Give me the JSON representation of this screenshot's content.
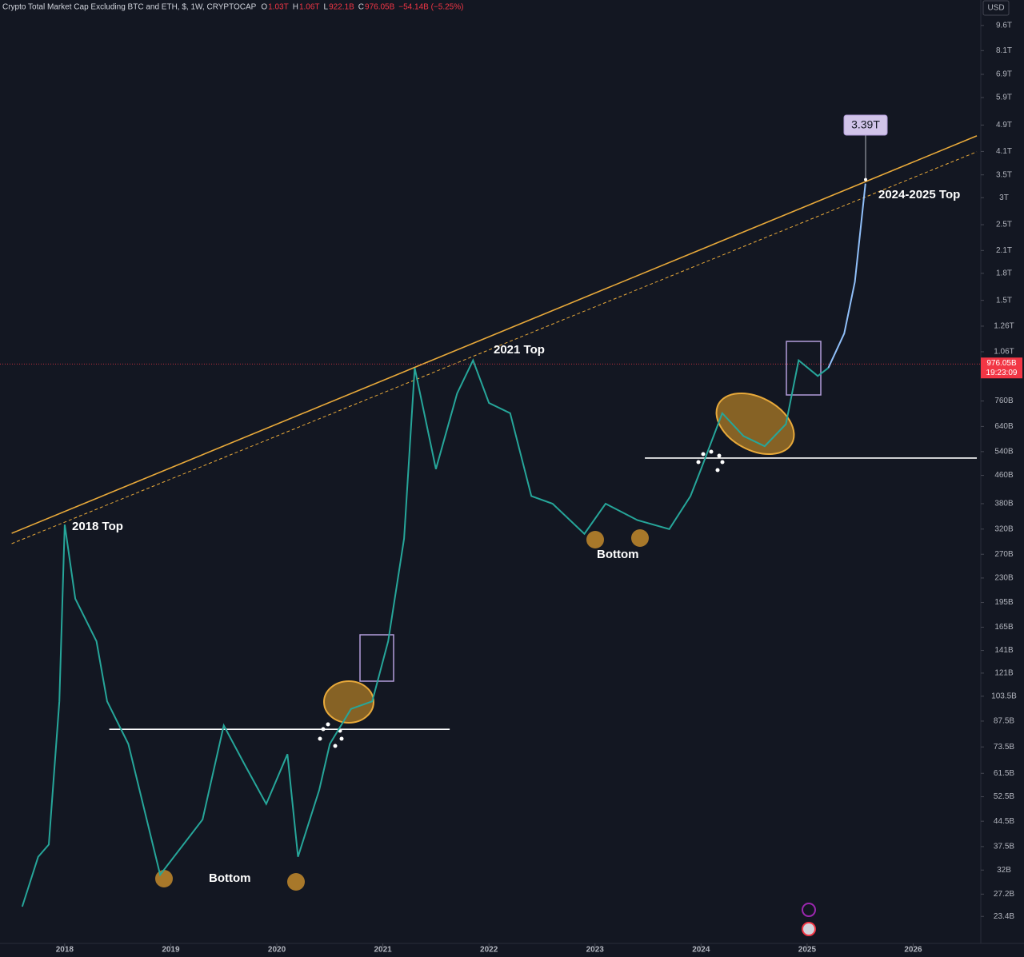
{
  "header": {
    "title": "Crypto Total Market Cap Excluding BTC and ETH, $, 1W, CRYPTOCAP",
    "ohlc": [
      {
        "key": "O",
        "value": "1.03T"
      },
      {
        "key": "H",
        "value": "1.06T"
      },
      {
        "key": "L",
        "value": "922.1B"
      },
      {
        "key": "C",
        "value": "976.05B"
      }
    ],
    "change": "−54.14B (−5.25%)",
    "currency": "USD"
  },
  "chart_data": {
    "type": "line",
    "log_scale": true,
    "grid": false,
    "x": [
      2017.6,
      2017.75,
      2017.85,
      2017.95,
      2018.0,
      2018.1,
      2018.3,
      2018.4,
      2018.6,
      2018.9,
      2019.3,
      2019.5,
      2019.7,
      2019.9,
      2020.1,
      2020.2,
      2020.4,
      2020.5,
      2020.7,
      2020.9,
      2021.05,
      2021.2,
      2021.3,
      2021.5,
      2021.7,
      2021.85,
      2022.0,
      2022.2,
      2022.4,
      2022.6,
      2022.9,
      2023.1,
      2023.4,
      2023.7,
      2023.9,
      2024.0,
      2024.2,
      2024.4,
      2024.6,
      2024.8,
      2024.92,
      2025.1,
      2025.2,
      2025.35,
      2025.45,
      2025.55
    ],
    "series": [
      {
        "color": "#26a69a",
        "values": [
          25000000000.0,
          35000000000.0,
          38000000000.0,
          100000000000.0,
          330000000000.0,
          200000000000.0,
          150000000000.0,
          100000000000.0,
          75000000000.0,
          31000000000.0,
          45000000000.0,
          85000000000.0,
          65000000000.0,
          50000000000.0,
          70000000000.0,
          35000000000.0,
          55000000000.0,
          75000000000.0,
          95000000000.0,
          100000000000.0,
          150000000000.0,
          300000000000.0,
          950000000000.0,
          480000000000.0,
          800000000000.0,
          1000000000000.0,
          750000000000.0,
          700000000000.0,
          400000000000.0,
          380000000000.0,
          310000000000.0,
          380000000000.0,
          340000000000.0,
          320000000000.0,
          400000000000.0,
          480000000000.0,
          700000000000.0,
          600000000000.0,
          560000000000.0,
          650000000000.0,
          1000000000000.0,
          900000000000.0,
          950000000000.0,
          null,
          null,
          null
        ]
      },
      {
        "color": "#90bff9",
        "values": [
          null,
          null,
          null,
          null,
          null,
          null,
          null,
          null,
          null,
          null,
          null,
          null,
          null,
          null,
          null,
          null,
          null,
          null,
          null,
          null,
          null,
          null,
          null,
          null,
          null,
          null,
          null,
          null,
          null,
          null,
          null,
          null,
          null,
          null,
          null,
          null,
          null,
          null,
          null,
          null,
          null,
          null,
          950000000000.0,
          1200000000000.0,
          1700000000000.0,
          3300000000000.0
        ]
      }
    ],
    "trendlines": [
      {
        "color": "#e8a93a",
        "dashed": false,
        "x": [
          2017.5,
          2026.6
        ],
        "values": [
          311000000000.0,
          4555000000000.0
        ]
      },
      {
        "color": "#e8a93a",
        "dashed": true,
        "x": [
          2017.5,
          2026.6
        ],
        "values": [
          290000000000.0,
          4090000000000.0
        ]
      },
      {
        "color": "#ffffff",
        "dashed": false,
        "x": [
          2018.42,
          2021.63
        ],
        "values": [
          82800000000.0,
          82800000000.0
        ]
      },
      {
        "color": "#ffffff",
        "dashed": false,
        "x": [
          2023.47,
          2026.6
        ],
        "values": [
          517000000000.0,
          517000000000.0
        ]
      }
    ],
    "current_price": {
      "value": 976050000000.0,
      "label": "976.05B",
      "timer": "19:23:09"
    },
    "target": {
      "value": 3390000000000.0,
      "label": "3.39T"
    },
    "annotations": [
      "2018 Top",
      "2021 Top",
      "2024-2025 Top",
      "Bottom",
      "Bottom"
    ],
    "xlim": [
      2017.39,
      2026.63
    ],
    "xticks": [
      2018,
      2019,
      2020,
      2021,
      2022,
      2023,
      2024,
      2025,
      2026
    ],
    "ylim": [
      19500000000.0,
      11400000000000.0
    ],
    "yticks": [
      {
        "value": 9600000000000.0,
        "label": "9.6T"
      },
      {
        "value": 8100000000000.0,
        "label": "8.1T"
      },
      {
        "value": 6900000000000.0,
        "label": "6.9T"
      },
      {
        "value": 5900000000000.0,
        "label": "5.9T"
      },
      {
        "value": 4900000000000.0,
        "label": "4.9T"
      },
      {
        "value": 4100000000000.0,
        "label": "4.1T"
      },
      {
        "value": 3500000000000.0,
        "label": "3.5T"
      },
      {
        "value": 3000000000000.0,
        "label": "3T"
      },
      {
        "value": 2500000000000.0,
        "label": "2.5T"
      },
      {
        "value": 2100000000000.0,
        "label": "2.1T"
      },
      {
        "value": 1800000000000.0,
        "label": "1.8T"
      },
      {
        "value": 1500000000000.0,
        "label": "1.5T"
      },
      {
        "value": 1260000000000.0,
        "label": "1.26T"
      },
      {
        "value": 1060000000000.0,
        "label": "1.06T"
      },
      {
        "value": 760000000000.0,
        "label": "760B"
      },
      {
        "value": 640000000000.0,
        "label": "640B"
      },
      {
        "value": 540000000000.0,
        "label": "540B"
      },
      {
        "value": 460000000000.0,
        "label": "460B"
      },
      {
        "value": 380000000000.0,
        "label": "380B"
      },
      {
        "value": 320000000000.0,
        "label": "320B"
      },
      {
        "value": 270000000000.0,
        "label": "270B"
      },
      {
        "value": 230000000000.0,
        "label": "230B"
      },
      {
        "value": 195000000000.0,
        "label": "195B"
      },
      {
        "value": 165000000000.0,
        "label": "165B"
      },
      {
        "value": 141000000000.0,
        "label": "141B"
      },
      {
        "value": 121000000000.0,
        "label": "121B"
      },
      {
        "value": 103500000000.0,
        "label": "103.5B"
      },
      {
        "value": 87500000000.0,
        "label": "87.5B"
      },
      {
        "value": 73500000000.0,
        "label": "73.5B"
      },
      {
        "value": 61500000000.0,
        "label": "61.5B"
      },
      {
        "value": 52500000000.0,
        "label": "52.5B"
      },
      {
        "value": 44500000000.0,
        "label": "44.5B"
      },
      {
        "value": 37500000000.0,
        "label": "37.5B"
      },
      {
        "value": 32000000000.0,
        "label": "32B"
      },
      {
        "value": 27200000000.0,
        "label": "27.2B"
      },
      {
        "value": 23400000000.0,
        "label": "23.4B"
      }
    ]
  }
}
